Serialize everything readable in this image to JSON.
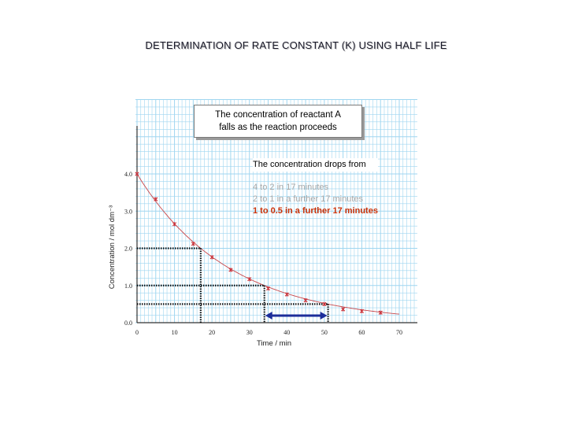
{
  "title": "DETERMINATION OF RATE CONSTANT   (K) USING HALF LIFE",
  "callout": {
    "line1": "The concentration of reactant A",
    "line2": "falls as the reaction proceeds"
  },
  "note": {
    "title": "The concentration drops from",
    "lines": [
      {
        "text": "4 to 2 in 17 minutes",
        "style": "faded"
      },
      {
        "text": "2 to 1 in a further 17 minutes",
        "style": "faded"
      },
      {
        "text": "1 to 0.5 in a further  17 minutes",
        "style": "highlight"
      }
    ]
  },
  "colors": {
    "grid": "#9fd6f0",
    "curve": "#c8464a",
    "points": "#c8323a",
    "highlight_text": "#c8320a",
    "arrow": "#1c2d9a",
    "guides": "#111111"
  },
  "chart_data": {
    "type": "scatter",
    "title": "",
    "xlabel": "Time / min",
    "ylabel": "Concentration / mol dm⁻³",
    "xlim": [
      0,
      70
    ],
    "ylim": [
      0,
      4.0
    ],
    "x_ticks": [
      "0",
      "10",
      "20",
      "30",
      "40",
      "50",
      "60",
      "70"
    ],
    "y_ticks": [
      "0.0",
      "1.0",
      "2.0",
      "3.0",
      "4.0"
    ],
    "grid": true,
    "series": [
      {
        "x": [
          0,
          5,
          10,
          15,
          20,
          25,
          30,
          35,
          40,
          45,
          50,
          55,
          60,
          65
        ],
        "y": [
          4.0,
          3.32,
          2.65,
          2.12,
          1.76,
          1.42,
          1.17,
          0.92,
          0.76,
          0.6,
          0.5,
          0.36,
          0.31,
          0.27
        ]
      }
    ],
    "half_life_guides": [
      {
        "concentration": 2.0,
        "time": 17
      },
      {
        "concentration": 1.0,
        "time": 34
      },
      {
        "concentration": 0.5,
        "time": 51
      }
    ],
    "arrow": {
      "from": 34,
      "to": 51
    }
  }
}
